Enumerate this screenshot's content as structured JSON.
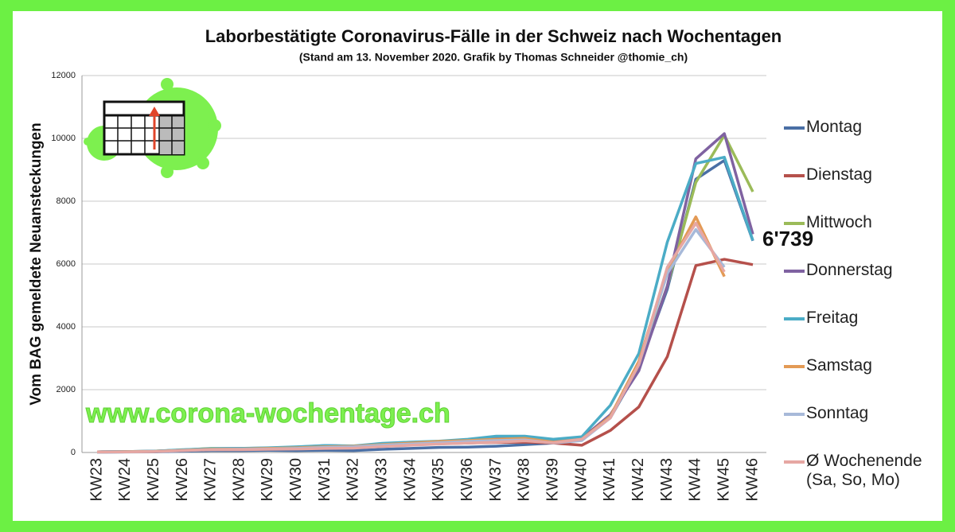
{
  "chart_data": {
    "type": "line",
    "title": "Laborbestätigte Coronavirus-Fälle in der Schweiz nach Wochentagen",
    "subtitle": "(Stand am 13. November 2020. Grafik by Thomas Schneider @thomie_ch)",
    "y_label": "Vom BAG gemeldete Neuansteckungen",
    "watermark": "www.corona-wochentage.ch",
    "annotation": "6'739",
    "categories": [
      "KW23",
      "KW24",
      "KW25",
      "KW26",
      "KW27",
      "KW28",
      "KW29",
      "KW30",
      "KW31",
      "KW32",
      "KW33",
      "KW34",
      "KW35",
      "KW36",
      "KW37",
      "KW38",
      "KW39",
      "KW40",
      "KW41",
      "KW42",
      "KW43",
      "KW44",
      "KW45",
      "KW46"
    ],
    "ylim": [
      0,
      12000
    ],
    "yticks": [
      0,
      2000,
      4000,
      6000,
      8000,
      10000,
      12000
    ],
    "grid": true,
    "series": [
      {
        "name": "Montag",
        "color": "#4a6fa5",
        "values": [
          10,
          15,
          20,
          40,
          60,
          60,
          70,
          60,
          70,
          60,
          100,
          130,
          160,
          170,
          200,
          250,
          300,
          450,
          1100,
          2700,
          5200,
          8700,
          9300,
          6739
        ]
      },
      {
        "name": "Dienstag",
        "color": "#b5504b",
        "values": [
          20,
          25,
          30,
          70,
          110,
          110,
          120,
          140,
          160,
          170,
          220,
          250,
          280,
          300,
          320,
          330,
          300,
          230,
          700,
          1450,
          3050,
          5950,
          6150,
          5980
        ]
      },
      {
        "name": "Mittwoch",
        "color": "#9bbb59",
        "values": [
          20,
          30,
          40,
          80,
          130,
          120,
          130,
          150,
          180,
          190,
          260,
          300,
          330,
          370,
          430,
          450,
          380,
          430,
          1150,
          2700,
          5300,
          8600,
          10100,
          8300
        ]
      },
      {
        "name": "Donnerstag",
        "color": "#7f62a1",
        "values": [
          20,
          30,
          40,
          80,
          120,
          130,
          140,
          170,
          220,
          200,
          280,
          320,
          350,
          400,
          450,
          470,
          400,
          450,
          1200,
          2600,
          5300,
          9350,
          10150,
          6950
        ]
      },
      {
        "name": "Freitag",
        "color": "#4bacc6",
        "values": [
          20,
          30,
          40,
          90,
          120,
          130,
          150,
          180,
          220,
          210,
          290,
          330,
          360,
          420,
          520,
          520,
          420,
          500,
          1500,
          3150,
          6700,
          9200,
          9400,
          6750
        ]
      },
      {
        "name": "Samstag",
        "color": "#e39a55",
        "values": [
          15,
          25,
          35,
          70,
          100,
          110,
          130,
          150,
          180,
          200,
          250,
          300,
          350,
          380,
          420,
          450,
          330,
          420,
          1150,
          2900,
          5800,
          7500,
          5600,
          null
        ]
      },
      {
        "name": "Sonntag",
        "color": "#a7b9d9",
        "values": [
          10,
          20,
          30,
          60,
          90,
          100,
          110,
          130,
          160,
          180,
          230,
          270,
          310,
          350,
          380,
          400,
          300,
          380,
          1100,
          2800,
          5700,
          7100,
          5900,
          null
        ]
      },
      {
        "name": "Ø Wochenende (Sa, So, Mo)",
        "color": "#e6a7a3",
        "values": [
          15,
          20,
          30,
          60,
          90,
          90,
          100,
          110,
          130,
          140,
          190,
          230,
          270,
          300,
          330,
          370,
          310,
          420,
          1100,
          2800,
          5900,
          7300,
          5750,
          null
        ]
      }
    ]
  }
}
